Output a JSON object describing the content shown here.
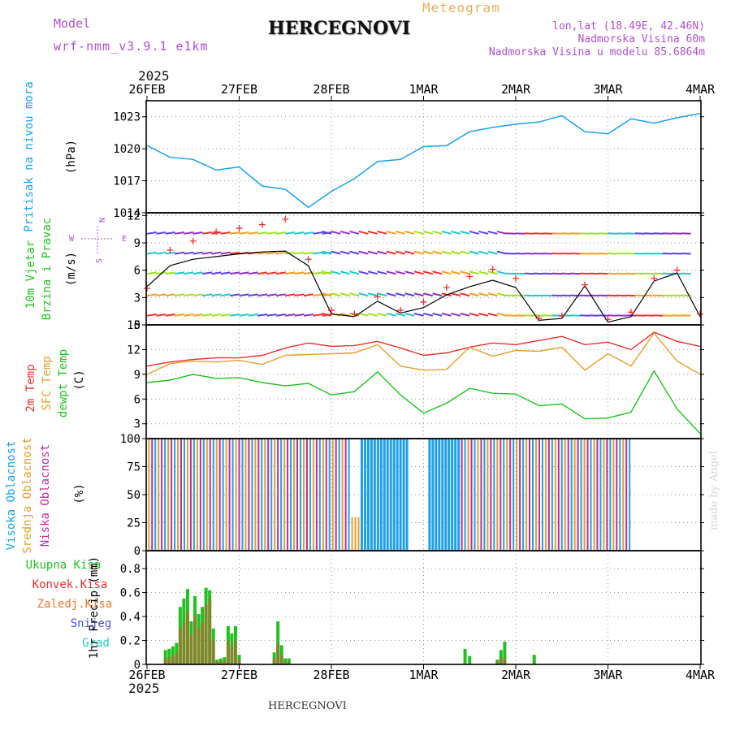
{
  "header": {
    "model_label": "Model",
    "model_name": "wrf-nmm_v3.9.1 e1km",
    "title": "HERCEGNOVI",
    "subtitle": "Meteogram",
    "lonlat": "lon,lat (18.49E, 42.46N)",
    "elevation": "Nadmorska Visina 60m",
    "model_elevation": "Nadmorska Visina u modelu 85.6864m",
    "footer_title": "HERCEGNOVI",
    "watermark": "made by Angel",
    "year_top": "2025",
    "year_bottom": "2025"
  },
  "colors": {
    "pressure": "#1ea0e6",
    "wind_speed": "#000000",
    "wind_gust": "#e83030",
    "temp2m": "#e83030",
    "sfc_temp": "#e0a030",
    "dewpt": "#22c022",
    "high_cloud": "#1ea0e6",
    "mid_cloud": "#e0a030",
    "low_cloud": "#c02aa0",
    "total_precip": "#22c022",
    "conv_precip": "#e83030",
    "frozen_precip": "#f07830",
    "snow": "#5050e0",
    "hail": "#20c8c8",
    "magenta_text": "#b050d0",
    "orange_text": "#e8b060"
  },
  "chart_data": [
    {
      "type": "line",
      "name": "pressure",
      "ylabel": "Pritisak na nivou mora",
      "unit": "(hPa)",
      "ylim": [
        1014,
        1024.5
      ],
      "yticks": [
        1014,
        1017,
        1020,
        1023
      ],
      "x_categories": [
        "26FEB",
        "27FEB",
        "28FEB",
        "1MAR",
        "2MAR",
        "3MAR",
        "4MAR"
      ],
      "x_days": [
        0,
        0.25,
        0.5,
        0.75,
        1,
        1.25,
        1.5,
        1.75,
        2,
        2.25,
        2.5,
        2.75,
        3,
        3.25,
        3.5,
        3.75,
        4,
        4.25,
        4.5,
        4.75,
        5,
        5.25,
        5.5,
        5.75,
        6
      ],
      "values": [
        1020.3,
        1019.2,
        1019.0,
        1018.0,
        1018.3,
        1016.5,
        1016.2,
        1014.5,
        1016.0,
        1017.2,
        1018.8,
        1019.0,
        1020.2,
        1020.3,
        1021.6,
        1022.0,
        1022.3,
        1022.5,
        1023.1,
        1021.6,
        1021.4,
        1022.8,
        1022.4,
        1022.9,
        1023.3
      ]
    },
    {
      "type": "line",
      "name": "wind",
      "ylabel": [
        "10m Vjetar",
        "Brzina i Pravac"
      ],
      "unit": "(m/s)",
      "compass": [
        "N",
        "W",
        "E",
        "S"
      ],
      "ylim": [
        0,
        12.3
      ],
      "yticks": [
        0,
        3,
        6,
        9,
        12
      ],
      "x_days": [
        0,
        0.25,
        0.5,
        0.75,
        1,
        1.25,
        1.5,
        1.75,
        2,
        2.25,
        2.5,
        2.75,
        3,
        3.25,
        3.5,
        3.75,
        4,
        4.25,
        4.5,
        4.75,
        5,
        5.25,
        5.5,
        5.75,
        6
      ],
      "speed": [
        4.2,
        6.5,
        7.2,
        7.5,
        7.8,
        8.0,
        8.1,
        6.5,
        1.2,
        0.9,
        2.6,
        1.3,
        1.9,
        3.3,
        4.2,
        4.9,
        4.1,
        0.5,
        0.7,
        4.3,
        0.3,
        0.9,
        4.8,
        5.7,
        0.9
      ],
      "gust": [
        4.0,
        8.2,
        9.2,
        10.2,
        10.6,
        11.0,
        11.6,
        7.2,
        1.6,
        1.2,
        3.1,
        1.6,
        2.5,
        4.1,
        5.3,
        6.1,
        5.1,
        0.7,
        1.0,
        4.4,
        0.6,
        1.4,
        5.1,
        6.0,
        1.2
      ]
    },
    {
      "type": "line",
      "name": "temperature",
      "ylabel": [
        "2m Temp",
        "SFC Temp",
        "dewpt Temp"
      ],
      "unit": "(C)",
      "ylim": [
        1.2,
        15
      ],
      "yticks": [
        3,
        6,
        9,
        12,
        15
      ],
      "x_days": [
        0,
        0.25,
        0.5,
        0.75,
        1,
        1.25,
        1.5,
        1.75,
        2,
        2.25,
        2.5,
        2.75,
        3,
        3.25,
        3.5,
        3.75,
        4,
        4.25,
        4.5,
        4.75,
        5,
        5.25,
        5.5,
        5.75,
        6
      ],
      "series": [
        {
          "key": "temp2m",
          "values": [
            10.0,
            10.5,
            10.8,
            11.0,
            11.0,
            11.3,
            12.2,
            12.8,
            12.4,
            12.5,
            13.0,
            12.2,
            11.3,
            11.6,
            12.3,
            12.8,
            12.6,
            13.1,
            13.6,
            12.6,
            12.9,
            12.0,
            14.1,
            13.0,
            12.4
          ]
        },
        {
          "key": "sfc",
          "values": [
            9.0,
            10.3,
            10.6,
            10.5,
            10.7,
            10.2,
            11.3,
            11.4,
            11.5,
            11.6,
            12.6,
            10.0,
            9.5,
            9.6,
            12.3,
            11.2,
            11.9,
            11.8,
            12.3,
            9.5,
            11.5,
            10.0,
            14.0,
            10.6,
            9.0
          ]
        },
        {
          "key": "dewpt",
          "values": [
            8.0,
            8.3,
            9.0,
            8.5,
            8.6,
            8.0,
            7.6,
            7.9,
            6.5,
            6.9,
            9.3,
            6.5,
            4.3,
            5.5,
            7.3,
            6.7,
            6.6,
            5.2,
            5.4,
            3.6,
            3.7,
            4.4,
            9.4,
            4.8,
            1.8
          ]
        }
      ]
    },
    {
      "type": "bar",
      "name": "cloud",
      "ylabel": [
        "Visoka Oblacnost",
        "Srednja Oblacnost",
        "Niska Oblacnost"
      ],
      "unit": "(%)",
      "ylim": [
        0,
        100
      ],
      "yticks": [
        0,
        25,
        50,
        75,
        100
      ],
      "cover_windows_days": [
        [
          0,
          2.2
        ],
        [
          3.4,
          5.35
        ]
      ],
      "high_cloud_window_days": [
        [
          2.3,
          2.85
        ],
        [
          3.05,
          3.2
        ],
        [
          3.2,
          3.45
        ]
      ],
      "mid_low_window_days": [
        [
          2.2,
          2.35
        ],
        [
          5.3,
          5.45
        ]
      ]
    },
    {
      "type": "bar",
      "name": "precipitation",
      "ylabel": "1hr Precip",
      "unit": "(mm)",
      "ylim": [
        0,
        0.95
      ],
      "yticks": [
        0,
        0.2,
        0.4,
        0.6,
        0.8
      ],
      "legend": [
        "Ukupna Kisa",
        "Konvek.Kisa",
        "Zaledj.Kisa",
        "Snijeg",
        "Grad"
      ],
      "x_days": [
        0.2,
        0.24,
        0.28,
        0.32,
        0.36,
        0.4,
        0.44,
        0.48,
        0.52,
        0.56,
        0.6,
        0.64,
        0.68,
        0.72,
        0.76,
        0.8,
        0.84,
        0.88,
        0.92,
        0.96,
        1.0,
        1.38,
        1.42,
        1.46,
        1.5,
        1.54,
        3.45,
        3.5,
        3.8,
        3.84,
        3.88,
        4.2
      ],
      "total": [
        0.12,
        0.13,
        0.15,
        0.18,
        0.48,
        0.55,
        0.63,
        0.36,
        0.57,
        0.42,
        0.48,
        0.64,
        0.62,
        0.3,
        0.04,
        0.05,
        0.06,
        0.32,
        0.26,
        0.32,
        0.08,
        0.1,
        0.36,
        0.16,
        0.05,
        0.05,
        0.13,
        0.07,
        0.04,
        0.12,
        0.19,
        0.08
      ],
      "conv": [
        0.05,
        0.06,
        0.07,
        0.1,
        0.3,
        0.35,
        0.45,
        0.25,
        0.4,
        0.3,
        0.35,
        0.5,
        0.55,
        0.2,
        0.02,
        0.03,
        0.03,
        0.2,
        0.15,
        0.2,
        0.04,
        0.05,
        0.18,
        0.08,
        0.02,
        0.02,
        0.0,
        0.0,
        0.02,
        0.06,
        0.05,
        0.0
      ]
    }
  ]
}
